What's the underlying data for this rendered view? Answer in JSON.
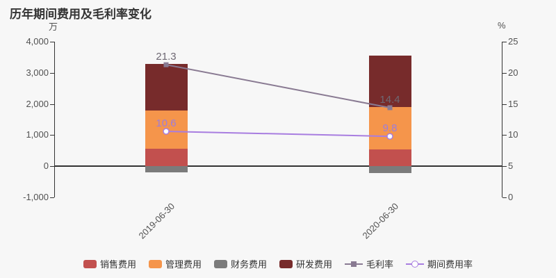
{
  "title": "历年期间费用及毛利率变化",
  "left_axis": {
    "unit": "万",
    "min": -1000,
    "max": 4000,
    "tick_values": [
      4000,
      3000,
      2000,
      1000,
      0,
      -1000
    ],
    "tick_labels": [
      "4,000",
      "3,000",
      "2,000",
      "1,000",
      "0",
      "-1,000"
    ]
  },
  "right_axis": {
    "unit": "%",
    "min": 0,
    "max": 25,
    "tick_values": [
      25,
      20,
      15,
      10,
      5,
      0
    ],
    "tick_labels": [
      "25",
      "20",
      "15",
      "10",
      "5",
      "0"
    ]
  },
  "chart_data": {
    "type": "bar",
    "subtype": "stacked-bars-with-percent-lines",
    "title": "历年期间费用及毛利率变化",
    "categories": [
      "2019-06-30",
      "2020-06-30"
    ],
    "ylabel_left": "万",
    "ylabel_right": "%",
    "ylim_left": [
      -1000,
      4000
    ],
    "ylim_right": [
      0,
      25
    ],
    "grid": false,
    "legend_position": "bottom",
    "bar_series": [
      {
        "id": "sales-expense",
        "name": "销售费用",
        "color": "#c2504e",
        "values": [
          560,
          540
        ]
      },
      {
        "id": "admin-expense",
        "name": "管理费用",
        "color": "#f5954b",
        "values": [
          1240,
          1360
        ]
      },
      {
        "id": "finance-expense",
        "name": "财务费用",
        "color": "#7b7b7b",
        "values": [
          -200,
          -220
        ]
      },
      {
        "id": "rd-expense",
        "name": "研发费用",
        "color": "#772b2b",
        "values": [
          1480,
          1660
        ]
      }
    ],
    "line_series": [
      {
        "id": "gross-margin",
        "name": "毛利率",
        "axis": "right",
        "marker": "square",
        "color": "#897a92",
        "label_color": "#6e6873",
        "values": [
          21.3,
          14.4
        ],
        "labels": [
          "21.3",
          "14.4"
        ]
      },
      {
        "id": "period-expense-ratio",
        "name": "期间费用率",
        "axis": "right",
        "marker": "circle",
        "color": "#a87de0",
        "label_color": "#9c7ddd",
        "values": [
          10.6,
          9.8
        ],
        "labels": [
          "10.6",
          "9.8"
        ]
      }
    ]
  },
  "colors": {
    "background": "#f7f7f7",
    "axis_line": "#333333",
    "axis_text": "#515151",
    "title_text": "#333333"
  }
}
